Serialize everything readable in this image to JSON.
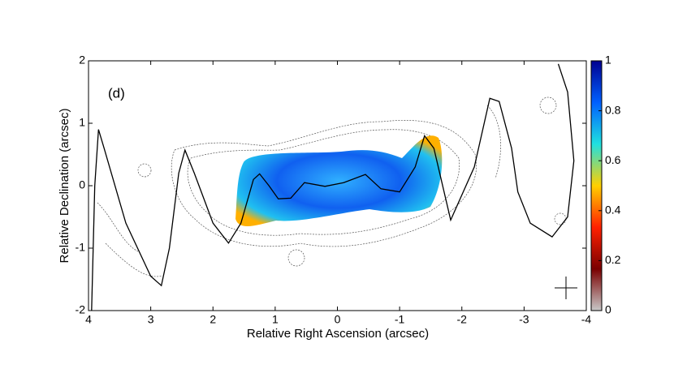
{
  "chart_data": {
    "type": "map",
    "annotation": "(d)",
    "x_label": "Relative Right Ascension (arcsec)",
    "y_label": "Relative Declination (arcsec)",
    "xlim": [
      4,
      -4
    ],
    "ylim": [
      -2,
      2
    ],
    "xticks": [
      4,
      3,
      2,
      1,
      0,
      -1,
      -2,
      -3,
      -4
    ],
    "yticks": [
      -2,
      -1,
      0,
      1,
      2
    ],
    "line": {
      "color": "#000000",
      "x": [
        3.95,
        3.9,
        3.84,
        3.75,
        3.4,
        3.0,
        2.83,
        2.7,
        2.55,
        2.45,
        2.3,
        2.0,
        1.75,
        1.55,
        1.35,
        1.25,
        1.1,
        0.95,
        0.75,
        0.53,
        0.2,
        -0.1,
        -0.45,
        -0.7,
        -1.0,
        -1.25,
        -1.4,
        -1.55,
        -1.82,
        -2.2,
        -2.45,
        -2.6,
        -2.8,
        -2.9,
        -3.1,
        -3.45,
        -3.7,
        -3.8,
        -3.7,
        -3.55
      ],
      "y": [
        -2,
        0,
        0.9,
        0.6,
        -0.6,
        -1.45,
        -1.6,
        -1.0,
        0.2,
        0.57,
        0.2,
        -0.6,
        -0.92,
        -0.6,
        0.1,
        0.19,
        0.0,
        -0.21,
        -0.2,
        0.05,
        -0.01,
        0.05,
        0.18,
        -0.05,
        -0.1,
        0.3,
        0.8,
        0.6,
        -0.55,
        0.3,
        1.4,
        1.35,
        0.6,
        -0.1,
        -0.6,
        -0.82,
        -0.5,
        0.4,
        1.5,
        1.95
      ]
    },
    "colorbar": {
      "clim": [
        0,
        1
      ],
      "ticks": [
        0,
        0.2,
        0.4,
        0.6,
        0.8,
        1
      ],
      "colors": [
        "#c8c8c8",
        "#7a0000",
        "#ff2000",
        "#ffd000",
        "#20e0e0",
        "#0060ff",
        "#000090"
      ]
    }
  }
}
